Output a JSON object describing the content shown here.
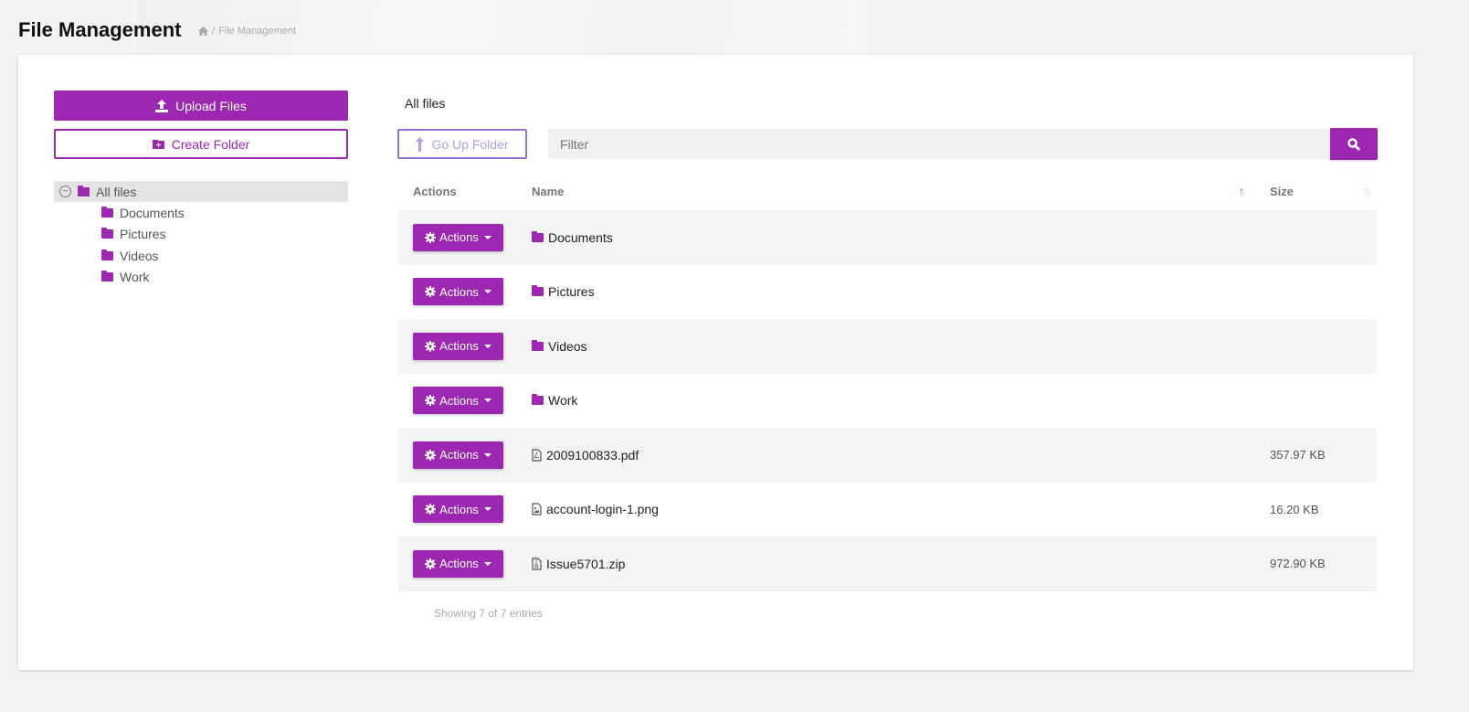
{
  "header": {
    "title": "File Management",
    "breadcrumb": {
      "home_icon": "home-icon",
      "current": "File Management"
    }
  },
  "sidebar": {
    "upload_label": "Upload Files",
    "create_folder_label": "Create Folder",
    "tree": {
      "root": "All files",
      "children": [
        "Documents",
        "Pictures",
        "Videos",
        "Work"
      ]
    }
  },
  "main": {
    "current_folder": "All files",
    "go_up_label": "Go Up Folder",
    "filter_placeholder": "Filter",
    "columns": {
      "actions": "Actions",
      "name": "Name",
      "size": "Size"
    },
    "action_label": "Actions",
    "rows": [
      {
        "type": "folder",
        "name": "Documents",
        "size": ""
      },
      {
        "type": "folder",
        "name": "Pictures",
        "size": ""
      },
      {
        "type": "folder",
        "name": "Videos",
        "size": ""
      },
      {
        "type": "folder",
        "name": "Work",
        "size": ""
      },
      {
        "type": "pdf",
        "name": "2009100833.pdf",
        "size": "357.97 KB"
      },
      {
        "type": "image",
        "name": "account-login-1.png",
        "size": "16.20 KB"
      },
      {
        "type": "archive",
        "name": "Issue5701.zip",
        "size": "972.90 KB"
      }
    ],
    "footer": "Showing 7 of 7 entries"
  },
  "colors": {
    "accent": "#9c27b0",
    "secondary": "#9575cd"
  }
}
